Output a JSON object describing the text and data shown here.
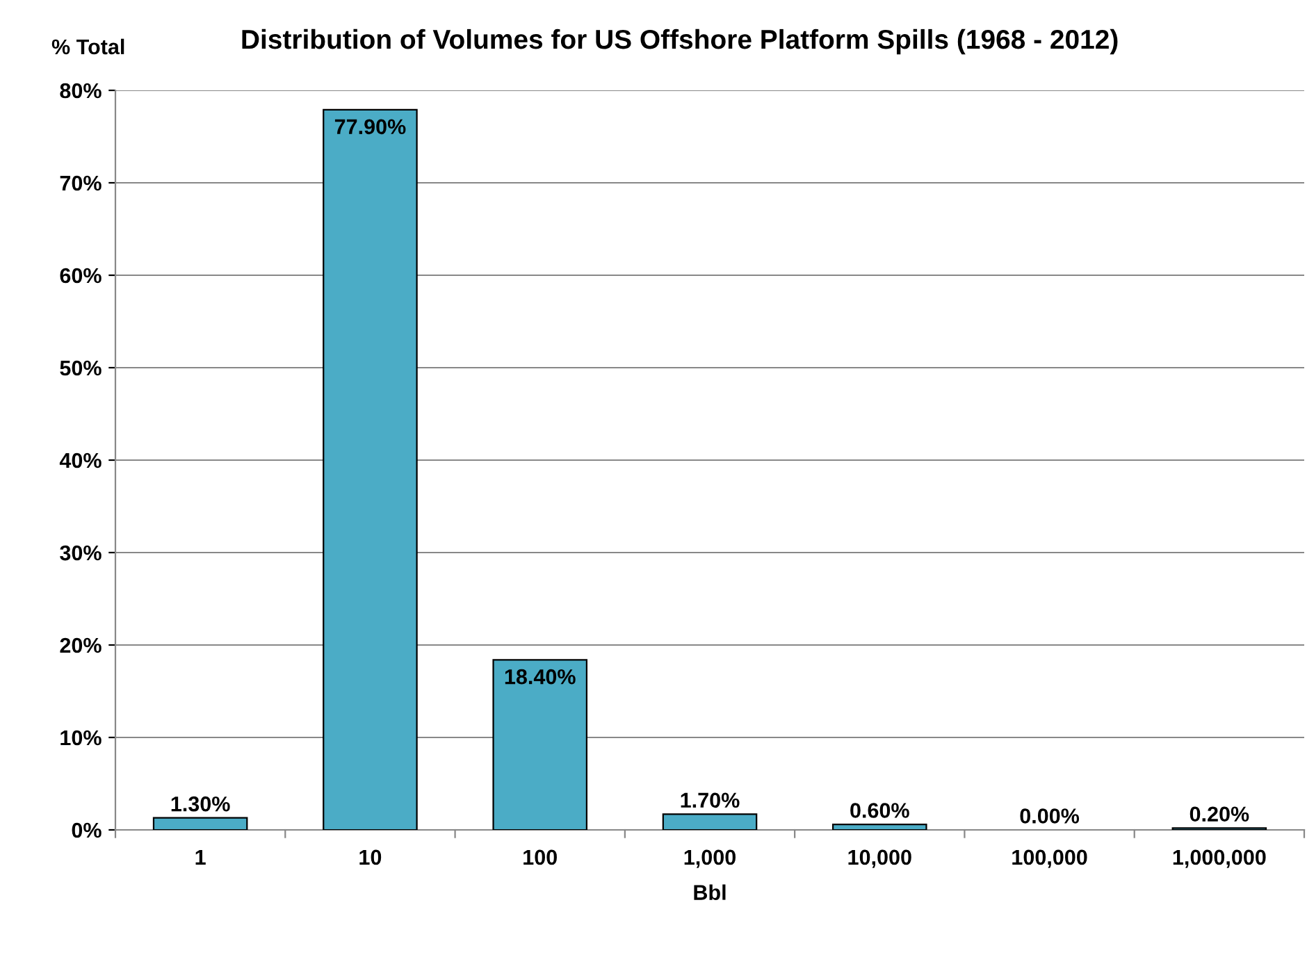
{
  "chart_data": {
    "type": "bar",
    "title": "Distribution of Volumes for US Offshore Platform Spills (1968 - 2012)",
    "ylabel": "% Total",
    "xlabel": "Bbl",
    "categories": [
      "1",
      "10",
      "100",
      "1,000",
      "10,000",
      "100,000",
      "1,000,000"
    ],
    "values": [
      1.3,
      77.9,
      18.4,
      1.7,
      0.6,
      0.0,
      0.2
    ],
    "value_labels": [
      "1.30%",
      "77.90%",
      "18.40%",
      "1.70%",
      "0.60%",
      "0.00%",
      "0.20%"
    ],
    "color": "#4bacc6",
    "ylim": [
      0,
      80
    ],
    "yticks": [
      {
        "value": 0,
        "label": "0%"
      },
      {
        "value": 10,
        "label": "10%"
      },
      {
        "value": 20,
        "label": "20%"
      },
      {
        "value": 30,
        "label": "30%"
      },
      {
        "value": 40,
        "label": "40%"
      },
      {
        "value": 50,
        "label": "50%"
      },
      {
        "value": 60,
        "label": "60%"
      },
      {
        "value": 70,
        "label": "70%"
      },
      {
        "value": 80,
        "label": "80%"
      }
    ],
    "grid": "y",
    "legend": false
  }
}
